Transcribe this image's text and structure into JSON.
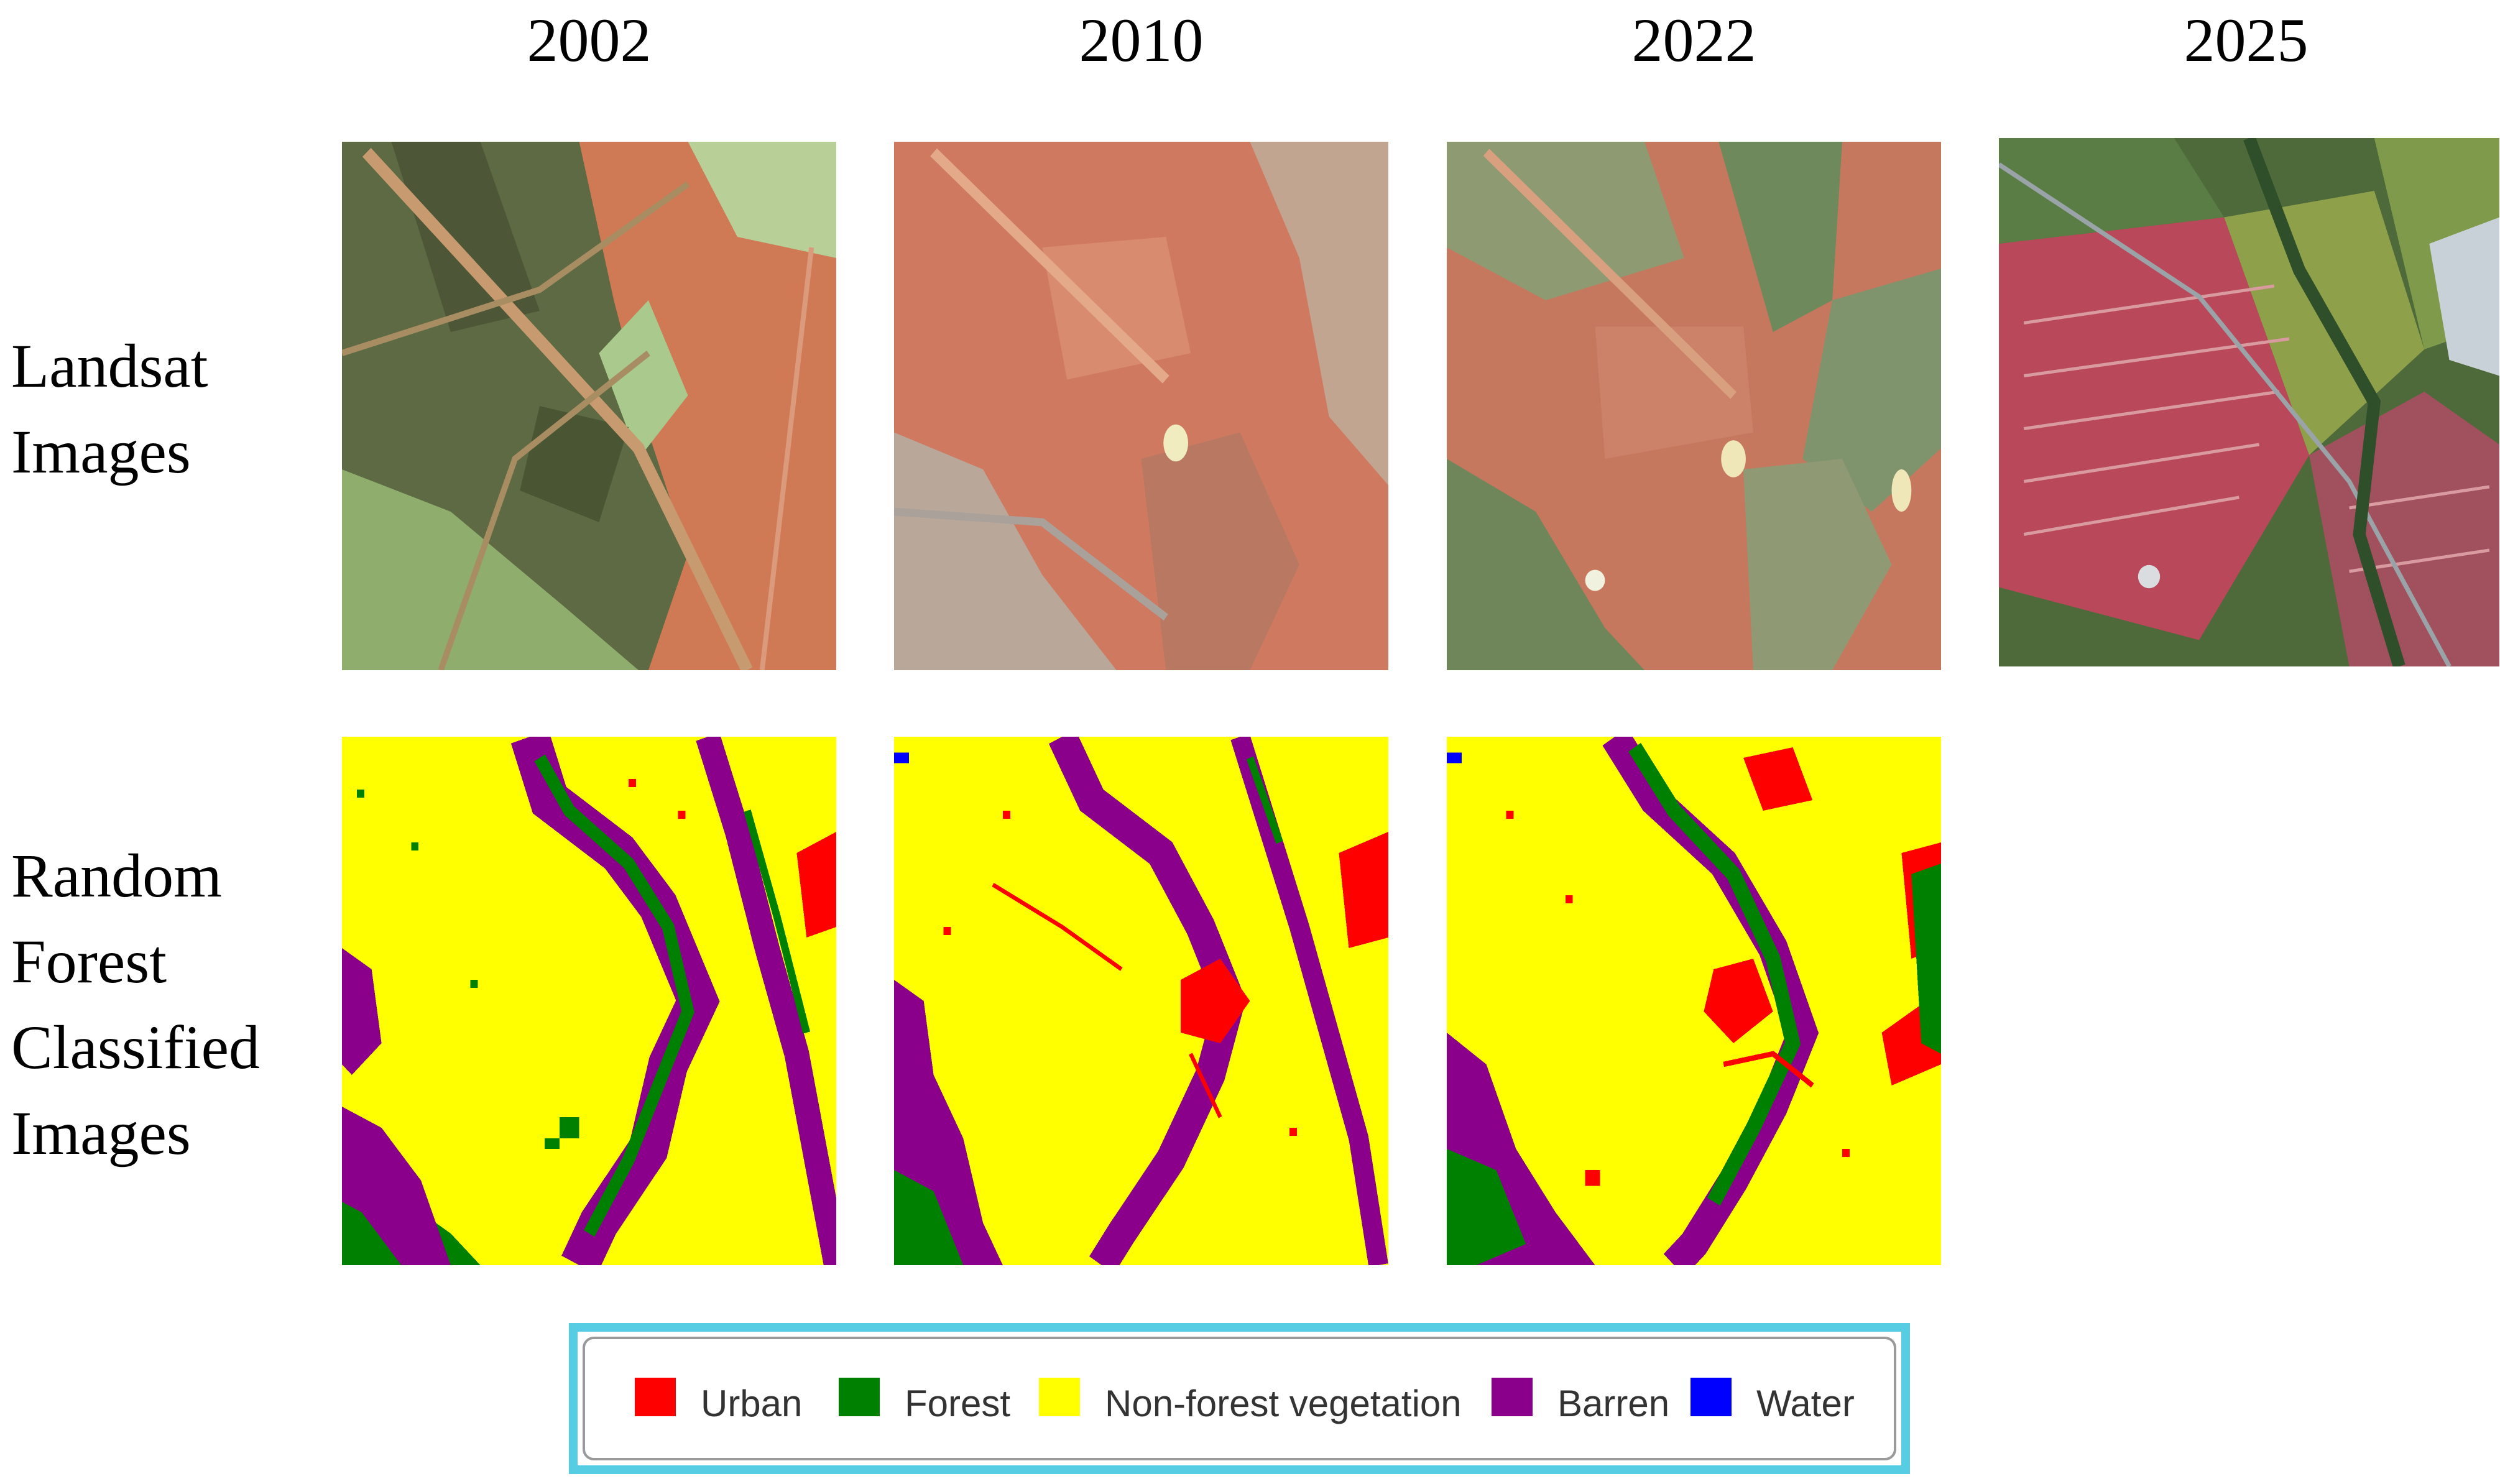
{
  "years": [
    "2002",
    "2010",
    "2022",
    "2025"
  ],
  "row_labels": {
    "landsat": [
      "Landsat",
      "Images"
    ],
    "classified": [
      "Random",
      "Forest",
      "Classified",
      "Images"
    ]
  },
  "legend": [
    {
      "label": "Urban",
      "color": "#ff0000"
    },
    {
      "label": "Forest",
      "color": "#008000"
    },
    {
      "label": "Non-forest vegetation",
      "color": "#ffff00"
    },
    {
      "label": "Barren",
      "color": "#8b008b"
    },
    {
      "label": "Water",
      "color": "#0000ff"
    }
  ]
}
